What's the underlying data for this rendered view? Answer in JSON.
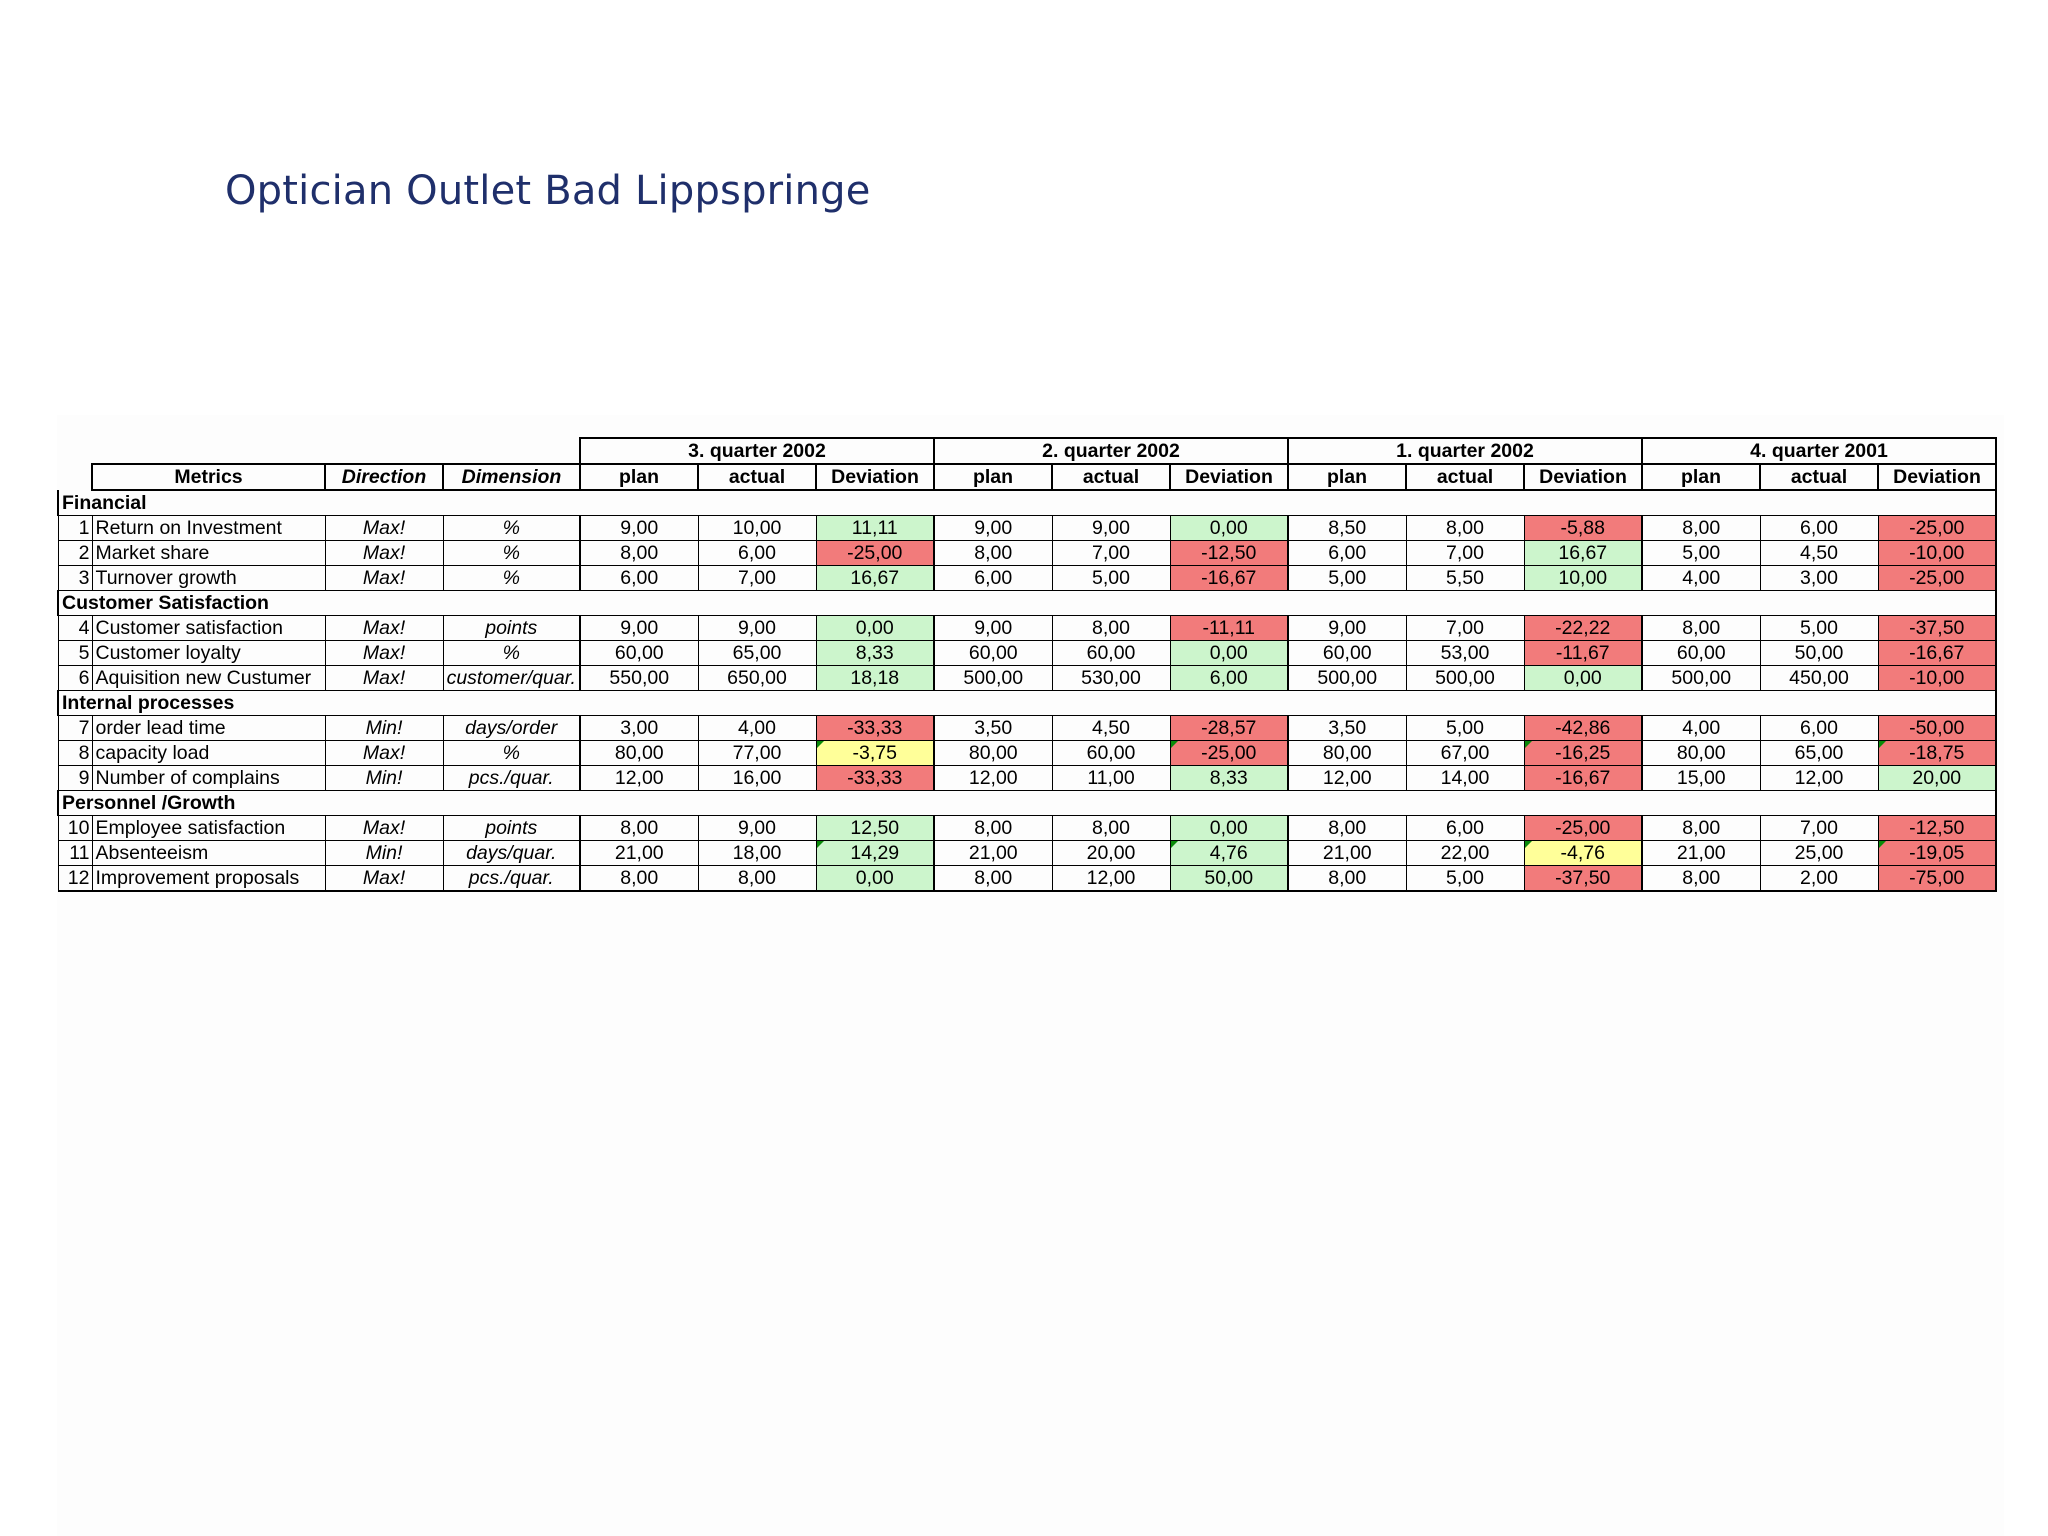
{
  "title": "Optician Outlet Bad Lippspringe",
  "headers": {
    "metrics": "Metrics",
    "direction": "Direction",
    "dimension": "Dimension",
    "plan": "plan",
    "actual": "actual",
    "deviation": "Deviation"
  },
  "quarters": [
    "3. quarter 2002",
    "2. quarter 2002",
    "1. quarter 2002",
    "4. quarter 2001"
  ],
  "groups": [
    {
      "name": "Financial",
      "rows": [
        {
          "no": "1",
          "metric": "Return on Investment",
          "direction": "Max!",
          "dimension": "%",
          "values": [
            [
              "9,00",
              "10,00",
              "11,11",
              "green"
            ],
            [
              "9,00",
              "9,00",
              "0,00",
              "green"
            ],
            [
              "8,50",
              "8,00",
              "-5,88",
              "red"
            ],
            [
              "8,00",
              "6,00",
              "-25,00",
              "red"
            ]
          ]
        },
        {
          "no": "2",
          "metric": "Market share",
          "direction": "Max!",
          "dimension": "%",
          "values": [
            [
              "8,00",
              "6,00",
              "-25,00",
              "red"
            ],
            [
              "8,00",
              "7,00",
              "-12,50",
              "red"
            ],
            [
              "6,00",
              "7,00",
              "16,67",
              "green"
            ],
            [
              "5,00",
              "4,50",
              "-10,00",
              "red"
            ]
          ]
        },
        {
          "no": "3",
          "metric": "Turnover growth",
          "direction": "Max!",
          "dimension": "%",
          "values": [
            [
              "6,00",
              "7,00",
              "16,67",
              "green"
            ],
            [
              "6,00",
              "5,00",
              "-16,67",
              "red"
            ],
            [
              "5,00",
              "5,50",
              "10,00",
              "green"
            ],
            [
              "4,00",
              "3,00",
              "-25,00",
              "red"
            ]
          ]
        }
      ]
    },
    {
      "name": "Customer Satisfaction",
      "rows": [
        {
          "no": "4",
          "metric": "Customer satisfaction",
          "direction": "Max!",
          "dimension": "points",
          "values": [
            [
              "9,00",
              "9,00",
              "0,00",
              "green"
            ],
            [
              "9,00",
              "8,00",
              "-11,11",
              "red"
            ],
            [
              "9,00",
              "7,00",
              "-22,22",
              "red"
            ],
            [
              "8,00",
              "5,00",
              "-37,50",
              "red"
            ]
          ]
        },
        {
          "no": "5",
          "metric": "Customer loyalty",
          "direction": "Max!",
          "dimension": "%",
          "values": [
            [
              "60,00",
              "65,00",
              "8,33",
              "green"
            ],
            [
              "60,00",
              "60,00",
              "0,00",
              "green"
            ],
            [
              "60,00",
              "53,00",
              "-11,67",
              "red"
            ],
            [
              "60,00",
              "50,00",
              "-16,67",
              "red"
            ]
          ]
        },
        {
          "no": "6",
          "metric": "Aquisition new Custumer",
          "direction": "Max!",
          "dimension": "customer/quar.",
          "values": [
            [
              "550,00",
              "650,00",
              "18,18",
              "green"
            ],
            [
              "500,00",
              "530,00",
              "6,00",
              "green"
            ],
            [
              "500,00",
              "500,00",
              "0,00",
              "green"
            ],
            [
              "500,00",
              "450,00",
              "-10,00",
              "red"
            ]
          ]
        }
      ]
    },
    {
      "name": "Internal processes",
      "rows": [
        {
          "no": "7",
          "metric": "order lead time",
          "direction": "Min!",
          "dimension": "days/order",
          "values": [
            [
              "3,00",
              "4,00",
              "-33,33",
              "red"
            ],
            [
              "3,50",
              "4,50",
              "-28,57",
              "red"
            ],
            [
              "3,50",
              "5,00",
              "-42,86",
              "red"
            ],
            [
              "4,00",
              "6,00",
              "-50,00",
              "red"
            ]
          ]
        },
        {
          "no": "8",
          "metric": "capacity load",
          "direction": "Max!",
          "dimension": "%",
          "values": [
            [
              "80,00",
              "77,00",
              "-3,75",
              "yellow flag"
            ],
            [
              "80,00",
              "60,00",
              "-25,00",
              "red flag"
            ],
            [
              "80,00",
              "67,00",
              "-16,25",
              "red flag"
            ],
            [
              "80,00",
              "65,00",
              "-18,75",
              "red flag"
            ]
          ]
        },
        {
          "no": "9",
          "metric": "Number of complains",
          "direction": "Min!",
          "dimension": "pcs./quar.",
          "values": [
            [
              "12,00",
              "16,00",
              "-33,33",
              "red"
            ],
            [
              "12,00",
              "11,00",
              "8,33",
              "green"
            ],
            [
              "12,00",
              "14,00",
              "-16,67",
              "red"
            ],
            [
              "15,00",
              "12,00",
              "20,00",
              "green"
            ]
          ]
        }
      ]
    },
    {
      "name": "Personnel /Growth",
      "rows": [
        {
          "no": "10",
          "metric": "Employee satisfaction",
          "direction": "Max!",
          "dimension": "points",
          "values": [
            [
              "8,00",
              "9,00",
              "12,50",
              "green"
            ],
            [
              "8,00",
              "8,00",
              "0,00",
              "green"
            ],
            [
              "8,00",
              "6,00",
              "-25,00",
              "red"
            ],
            [
              "8,00",
              "7,00",
              "-12,50",
              "red"
            ]
          ]
        },
        {
          "no": "11",
          "metric": "Absenteeism",
          "direction": "Min!",
          "dimension": "days/quar.",
          "values": [
            [
              "21,00",
              "18,00",
              "14,29",
              "green flag"
            ],
            [
              "21,00",
              "20,00",
              "4,76",
              "green flag"
            ],
            [
              "21,00",
              "22,00",
              "-4,76",
              "yellow flag"
            ],
            [
              "21,00",
              "25,00",
              "-19,05",
              "red flag"
            ]
          ]
        },
        {
          "no": "12",
          "metric": "Improvement proposals",
          "direction": "Max!",
          "dimension": "pcs./quar.",
          "values": [
            [
              "8,00",
              "8,00",
              "0,00",
              "green"
            ],
            [
              "8,00",
              "12,00",
              "50,00",
              "green"
            ],
            [
              "8,00",
              "5,00",
              "-37,50",
              "red"
            ],
            [
              "8,00",
              "2,00",
              "-75,00",
              "red"
            ]
          ]
        }
      ]
    }
  ]
}
